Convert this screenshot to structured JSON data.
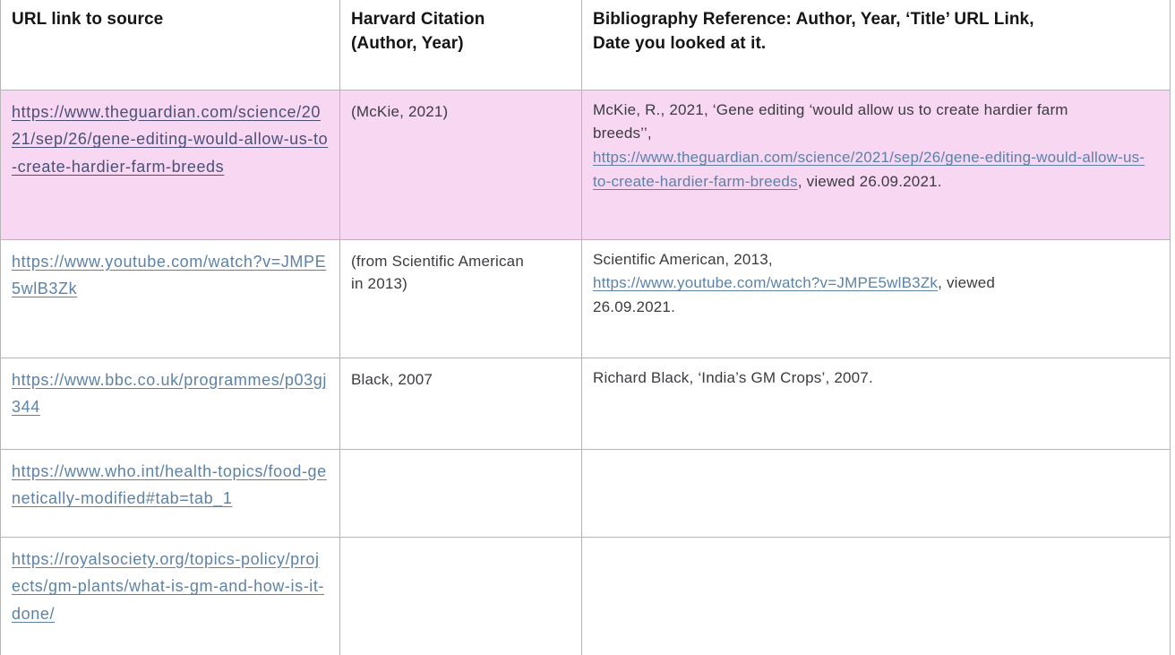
{
  "colors": {
    "highlight_row": "#f7d7f2",
    "border": "#b5b5b5",
    "link_dark_navy": "#4a5078",
    "link_steel_blue": "#5d82a8",
    "header_text": "#151515",
    "body_text": "#3b3b40"
  },
  "table": {
    "columns": [
      {
        "label": "URL link to source"
      },
      {
        "label": "Harvard Citation\n(Author, Year)"
      },
      {
        "label": "Bibliography Reference: Author, Year, ‘Title’ URL Link,\nDate you looked at it."
      }
    ],
    "rows": [
      {
        "highlighted": true,
        "url": "https://www.theguardian.com/science/2021/sep/26/gene-editing-would-allow-us-to-create-hardier-farm-breeds",
        "citation": "(McKie, 2021)",
        "bib_before": "McKie, R., 2021, ‘Gene editing ‘would allow us to create hardier farm\nbreeds’’,\n",
        "bib_link": "https://www.theguardian.com/science/2021/sep/26/gene-editing-would-allow-us-to-create-hardier-farm-breeds",
        "bib_after": ", viewed 26.09.2021."
      },
      {
        "highlighted": false,
        "url": "https://www.youtube.com/watch?v=JMPE5wlB3Zk",
        "citation": "(from Scientific American\nin 2013)",
        "bib_before": "Scientific American, 2013,\n",
        "bib_link": "https://www.youtube.com/watch?v=JMPE5wlB3Zk",
        "bib_after": ", viewed\n26.09.2021."
      },
      {
        "highlighted": false,
        "url": "https://www.bbc.co.uk/programmes/p03gj344",
        "citation": "Black, 2007",
        "bib_before": "Richard Black, ‘India’s GM Crops’, 2007.",
        "bib_link": "",
        "bib_after": ""
      },
      {
        "highlighted": false,
        "url": "https://www.who.int/health-topics/food-genetically-modified#tab=tab_1",
        "citation": "",
        "bib_before": "",
        "bib_link": "",
        "bib_after": ""
      },
      {
        "highlighted": false,
        "url": "https://royalsociety.org/topics-policy/projects/gm-plants/what-is-gm-and-how-is-it-done/",
        "citation": "",
        "bib_before": "",
        "bib_link": "",
        "bib_after": ""
      }
    ]
  }
}
